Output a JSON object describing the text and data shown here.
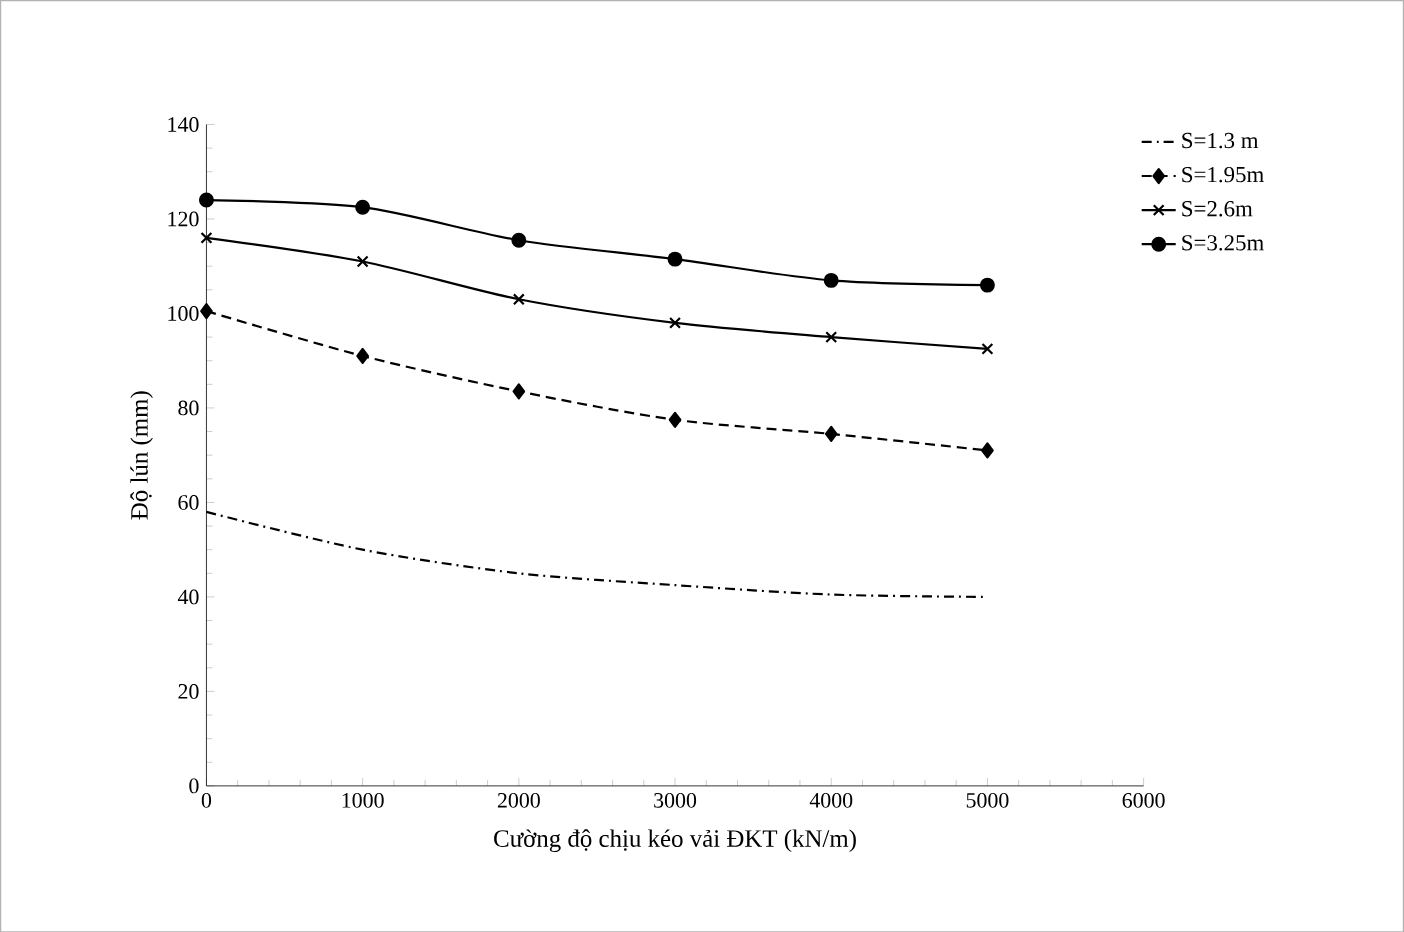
{
  "chart_data": {
    "type": "line",
    "xlabel": "Cường độ chịu kéo vải ĐKT (kN/m)",
    "ylabel": "Độ lún (mm)",
    "x": [
      0,
      1000,
      2000,
      3000,
      4000,
      5000
    ],
    "xlim": [
      0,
      6000
    ],
    "xticks": [
      0,
      1000,
      2000,
      3000,
      4000,
      5000,
      6000
    ],
    "ylim": [
      0,
      140
    ],
    "yticks": [
      0,
      20,
      40,
      60,
      80,
      100,
      120,
      140
    ],
    "grid": false,
    "legend": "top right",
    "series": [
      {
        "name": "S=1.3 m",
        "color": "#000000",
        "marker": "none",
        "line_style": "dashdot",
        "values": [
          58,
          50,
          45,
          42.5,
          40.5,
          40
        ]
      },
      {
        "name": "S=1.95m",
        "color": "#000000",
        "marker": "diamond",
        "line_style": "dashed",
        "values": [
          100.5,
          91,
          83.5,
          77.5,
          74.5,
          71
        ]
      },
      {
        "name": "S=2.6m",
        "color": "#000000",
        "marker": "cross",
        "line_style": "solid",
        "values": [
          116,
          111,
          103,
          98,
          95,
          92.5
        ]
      },
      {
        "name": "S=3.25m",
        "color": "#000000",
        "marker": "circle",
        "line_style": "solid",
        "values": [
          124,
          122.5,
          115.5,
          111.5,
          107,
          106
        ]
      }
    ]
  }
}
